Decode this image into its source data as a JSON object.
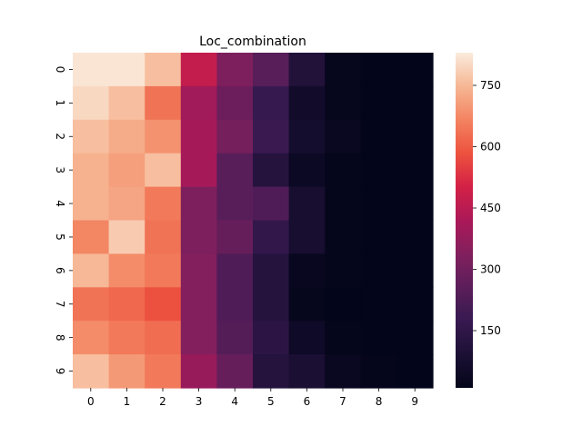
{
  "chart_data": {
    "type": "heatmap",
    "title": "Loc_combination",
    "xlabel": "",
    "ylabel": "",
    "x_categories": [
      "0",
      "1",
      "2",
      "3",
      "4",
      "5",
      "6",
      "7",
      "8",
      "9"
    ],
    "y_categories": [
      "0",
      "1",
      "2",
      "3",
      "4",
      "5",
      "6",
      "7",
      "8",
      "9"
    ],
    "colormap": "rocket",
    "vmin": 10,
    "vmax": 830,
    "colorbar_ticks": [
      150,
      300,
      450,
      600,
      750
    ],
    "colorbar_tick_labels": [
      "150",
      "300",
      "450",
      "600",
      "750"
    ],
    "values": [
      [
        820,
        820,
        760,
        470,
        330,
        250,
        110,
        20,
        10,
        10
      ],
      [
        800,
        760,
        640,
        400,
        290,
        170,
        60,
        20,
        10,
        10
      ],
      [
        760,
        730,
        690,
        410,
        310,
        180,
        70,
        30,
        10,
        10
      ],
      [
        740,
        710,
        760,
        410,
        250,
        120,
        40,
        15,
        10,
        10
      ],
      [
        740,
        720,
        650,
        330,
        250,
        230,
        80,
        15,
        10,
        10
      ],
      [
        670,
        780,
        640,
        330,
        280,
        160,
        80,
        15,
        10,
        10
      ],
      [
        750,
        680,
        650,
        340,
        230,
        120,
        25,
        15,
        10,
        10
      ],
      [
        640,
        620,
        580,
        340,
        230,
        120,
        20,
        10,
        10,
        10
      ],
      [
        680,
        650,
        630,
        340,
        240,
        140,
        50,
        15,
        10,
        10
      ],
      [
        760,
        700,
        650,
        380,
        280,
        120,
        90,
        30,
        15,
        10
      ]
    ]
  }
}
